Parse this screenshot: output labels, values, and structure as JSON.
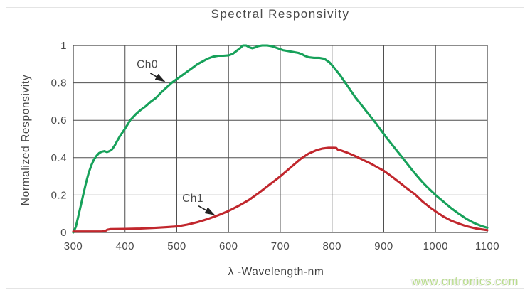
{
  "chart_data": {
    "type": "line",
    "title": "Spectral Responsivity",
    "xlabel": "λ -Wavelength-nm",
    "ylabel": "Normalized Responsivity",
    "xlim": [
      300,
      1100
    ],
    "ylim": [
      0,
      1
    ],
    "xticks": [
      300,
      400,
      500,
      600,
      700,
      800,
      900,
      1000,
      1100
    ],
    "yticks": [
      0,
      0.2,
      0.4,
      0.6,
      0.8,
      1
    ],
    "ytick_labels": [
      "0",
      "0.2",
      "0.4",
      "0.6",
      "0.8",
      "1"
    ],
    "grid": true,
    "legend_position": "inline-annotations",
    "series": [
      {
        "name": "Ch0",
        "color": "#17a15a",
        "points": [
          [
            300,
            0
          ],
          [
            305,
            0.03
          ],
          [
            310,
            0.09
          ],
          [
            315,
            0.15
          ],
          [
            320,
            0.21
          ],
          [
            325,
            0.27
          ],
          [
            330,
            0.32
          ],
          [
            335,
            0.36
          ],
          [
            340,
            0.39
          ],
          [
            345,
            0.41
          ],
          [
            350,
            0.425
          ],
          [
            355,
            0.432
          ],
          [
            360,
            0.435
          ],
          [
            365,
            0.43
          ],
          [
            370,
            0.435
          ],
          [
            375,
            0.445
          ],
          [
            380,
            0.465
          ],
          [
            385,
            0.49
          ],
          [
            390,
            0.515
          ],
          [
            395,
            0.535
          ],
          [
            400,
            0.555
          ],
          [
            410,
            0.6
          ],
          [
            420,
            0.63
          ],
          [
            430,
            0.655
          ],
          [
            440,
            0.675
          ],
          [
            450,
            0.7
          ],
          [
            460,
            0.72
          ],
          [
            470,
            0.75
          ],
          [
            480,
            0.775
          ],
          [
            490,
            0.8
          ],
          [
            500,
            0.82
          ],
          [
            510,
            0.84
          ],
          [
            520,
            0.86
          ],
          [
            530,
            0.88
          ],
          [
            540,
            0.9
          ],
          [
            550,
            0.915
          ],
          [
            560,
            0.93
          ],
          [
            570,
            0.94
          ],
          [
            580,
            0.945
          ],
          [
            590,
            0.945
          ],
          [
            600,
            0.947
          ],
          [
            608,
            0.955
          ],
          [
            615,
            0.97
          ],
          [
            622,
            0.985
          ],
          [
            628,
            1
          ],
          [
            634,
            1
          ],
          [
            640,
            0.99
          ],
          [
            646,
            0.985
          ],
          [
            652,
            0.99
          ],
          [
            658,
            0.997
          ],
          [
            665,
            1
          ],
          [
            675,
            1
          ],
          [
            685,
            0.995
          ],
          [
            695,
            0.985
          ],
          [
            705,
            0.975
          ],
          [
            715,
            0.97
          ],
          [
            725,
            0.965
          ],
          [
            735,
            0.96
          ],
          [
            742,
            0.953
          ],
          [
            748,
            0.944
          ],
          [
            755,
            0.937
          ],
          [
            765,
            0.934
          ],
          [
            775,
            0.934
          ],
          [
            785,
            0.929
          ],
          [
            795,
            0.91
          ],
          [
            805,
            0.878
          ],
          [
            815,
            0.843
          ],
          [
            825,
            0.803
          ],
          [
            835,
            0.763
          ],
          [
            845,
            0.723
          ],
          [
            855,
            0.688
          ],
          [
            865,
            0.653
          ],
          [
            875,
            0.618
          ],
          [
            885,
            0.583
          ],
          [
            895,
            0.545
          ],
          [
            905,
            0.508
          ],
          [
            915,
            0.473
          ],
          [
            925,
            0.438
          ],
          [
            935,
            0.403
          ],
          [
            945,
            0.368
          ],
          [
            955,
            0.333
          ],
          [
            965,
            0.3
          ],
          [
            975,
            0.268
          ],
          [
            985,
            0.24
          ],
          [
            1000,
            0.2
          ],
          [
            1015,
            0.165
          ],
          [
            1030,
            0.13
          ],
          [
            1045,
            0.1
          ],
          [
            1060,
            0.072
          ],
          [
            1075,
            0.05
          ],
          [
            1090,
            0.033
          ],
          [
            1100,
            0.025
          ]
        ]
      },
      {
        "name": "Ch1",
        "color": "#c1272d",
        "points": [
          [
            300,
            0.005
          ],
          [
            330,
            0.005
          ],
          [
            355,
            0.005
          ],
          [
            362,
            0.008
          ],
          [
            366,
            0.015
          ],
          [
            372,
            0.018
          ],
          [
            400,
            0.019
          ],
          [
            430,
            0.021
          ],
          [
            460,
            0.025
          ],
          [
            480,
            0.028
          ],
          [
            500,
            0.032
          ],
          [
            520,
            0.042
          ],
          [
            540,
            0.055
          ],
          [
            560,
            0.072
          ],
          [
            580,
            0.092
          ],
          [
            600,
            0.115
          ],
          [
            620,
            0.143
          ],
          [
            640,
            0.175
          ],
          [
            660,
            0.215
          ],
          [
            680,
            0.257
          ],
          [
            700,
            0.3
          ],
          [
            720,
            0.348
          ],
          [
            740,
            0.395
          ],
          [
            755,
            0.422
          ],
          [
            770,
            0.44
          ],
          [
            782,
            0.449
          ],
          [
            793,
            0.453
          ],
          [
            803,
            0.453
          ],
          [
            808,
            0.452
          ],
          [
            811,
            0.443
          ],
          [
            818,
            0.438
          ],
          [
            830,
            0.426
          ],
          [
            845,
            0.408
          ],
          [
            860,
            0.388
          ],
          [
            875,
            0.368
          ],
          [
            890,
            0.345
          ],
          [
            900,
            0.33
          ],
          [
            915,
            0.3
          ],
          [
            930,
            0.268
          ],
          [
            945,
            0.235
          ],
          [
            960,
            0.205
          ],
          [
            975,
            0.165
          ],
          [
            990,
            0.132
          ],
          [
            1000,
            0.112
          ],
          [
            1015,
            0.085
          ],
          [
            1030,
            0.063
          ],
          [
            1045,
            0.047
          ],
          [
            1060,
            0.033
          ],
          [
            1080,
            0.02
          ],
          [
            1100,
            0.012
          ]
        ]
      }
    ],
    "annotations": [
      {
        "label": "Ch0",
        "label_x": 443,
        "label_y": 0.9,
        "arrow": [
          449,
          0.852,
          476,
          0.808
        ]
      },
      {
        "label": "Ch1",
        "label_x": 531,
        "label_y": 0.182,
        "arrow": [
          542,
          0.142,
          572,
          0.095
        ]
      }
    ]
  },
  "watermark": {
    "text": "www.cntronics.com",
    "color": "#b9dc8e"
  },
  "colors": {
    "grid": "#4f4f4f",
    "axis_text": "#4a4a4a",
    "arrow": "#222222",
    "background": "#ffffff",
    "frame": "#e4e4e4"
  }
}
